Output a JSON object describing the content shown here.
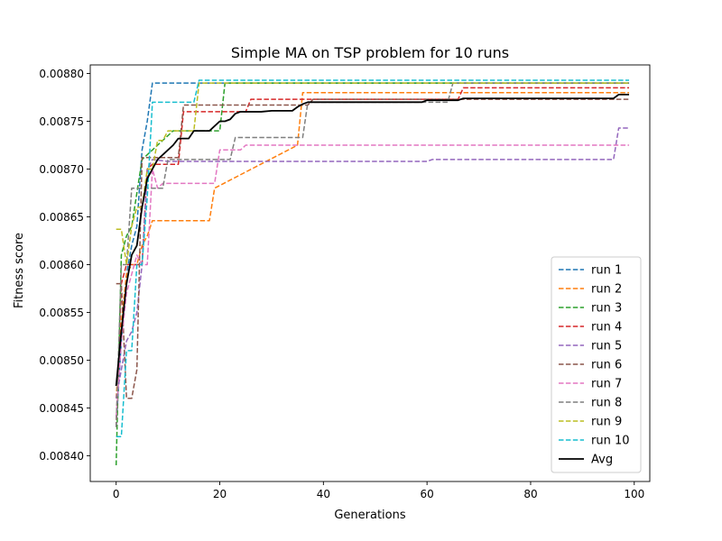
{
  "chart_data": {
    "type": "line",
    "title": "Simple MA on TSP problem for 10 runs",
    "xlabel": "Generations",
    "ylabel": "Fitness score",
    "xlim": [
      -5,
      103
    ],
    "ylim": [
      0.008373,
      0.008809
    ],
    "xticks": [
      0,
      20,
      40,
      60,
      80,
      100
    ],
    "xtick_labels": [
      "0",
      "20",
      "40",
      "60",
      "80",
      "100"
    ],
    "yticks": [
      0.0084,
      0.00845,
      0.0085,
      0.00855,
      0.0086,
      0.00865,
      0.0087,
      0.00875,
      0.0088
    ],
    "ytick_labels": [
      "0.00840",
      "0.00845",
      "0.00850",
      "0.00855",
      "0.00860",
      "0.00865",
      "0.00870",
      "0.00875",
      "0.00880"
    ],
    "grid": false,
    "legend_position": "lower-right",
    "series": [
      {
        "name": "run 1",
        "color": "#1f77b4",
        "dash": true,
        "x": [
          0,
          1,
          2,
          3,
          4,
          5,
          6,
          7,
          99
        ],
        "y": [
          0.00843,
          0.00852,
          0.00859,
          0.00862,
          0.00864,
          0.00872,
          0.00875,
          0.00879,
          0.00879
        ]
      },
      {
        "name": "run 2",
        "color": "#ff7f0e",
        "dash": true,
        "x": [
          0,
          1,
          2,
          3,
          4,
          5,
          6,
          7,
          18,
          19,
          35,
          36,
          66,
          99
        ],
        "y": [
          0.00846,
          0.00854,
          0.00859,
          0.0086,
          0.0086,
          0.00862,
          0.00863,
          0.008646,
          0.008646,
          0.00868,
          0.008725,
          0.00878,
          0.00878,
          0.00878
        ]
      },
      {
        "name": "run 3",
        "color": "#2ca02c",
        "dash": true,
        "x": [
          0,
          1,
          2,
          3,
          5,
          8,
          11,
          20,
          21,
          99
        ],
        "y": [
          0.00839,
          0.00861,
          0.00863,
          0.00864,
          0.00871,
          0.008725,
          0.00874,
          0.00874,
          0.00879,
          0.00879
        ]
      },
      {
        "name": "run 4",
        "color": "#d62728",
        "dash": true,
        "x": [
          0,
          1,
          2,
          5,
          6,
          7,
          12,
          13,
          25,
          26,
          66,
          67,
          99
        ],
        "y": [
          0.00843,
          0.00858,
          0.0086,
          0.0086,
          0.0087,
          0.008705,
          0.008705,
          0.00876,
          0.00876,
          0.008773,
          0.008773,
          0.008785,
          0.008785
        ]
      },
      {
        "name": "run 5",
        "color": "#9467bd",
        "dash": true,
        "x": [
          0,
          1,
          2,
          3,
          4,
          5,
          6,
          7,
          10,
          12,
          60,
          61,
          96,
          97,
          99
        ],
        "y": [
          0.00846,
          0.00849,
          0.00852,
          0.00853,
          0.00855,
          0.0086,
          0.0087,
          0.00871,
          0.008708,
          0.008708,
          0.008708,
          0.00871,
          0.00871,
          0.008743,
          0.008743
        ]
      },
      {
        "name": "run 6",
        "color": "#8c564b",
        "dash": true,
        "x": [
          0,
          1,
          2,
          3,
          4,
          5,
          6,
          12,
          13,
          37,
          38,
          99
        ],
        "y": [
          0.00858,
          0.00858,
          0.00846,
          0.00846,
          0.00849,
          0.008712,
          0.008712,
          0.008712,
          0.008767,
          0.008767,
          0.008773,
          0.008773
        ]
      },
      {
        "name": "run 7",
        "color": "#e377c2",
        "dash": true,
        "x": [
          0,
          1,
          2,
          3,
          4,
          5,
          6,
          7,
          8,
          9,
          19,
          20,
          24,
          25,
          99
        ],
        "y": [
          0.00844,
          0.00852,
          0.00857,
          0.00859,
          0.00861,
          0.0086,
          0.0086,
          0.0087,
          0.00868,
          0.008685,
          0.008685,
          0.00872,
          0.00872,
          0.008725,
          0.008725
        ]
      },
      {
        "name": "run 8",
        "color": "#7f7f7f",
        "dash": true,
        "x": [
          0,
          1,
          2,
          3,
          9,
          10,
          22,
          23,
          36,
          37,
          64,
          65,
          99
        ],
        "y": [
          0.00843,
          0.0086,
          0.0086,
          0.00868,
          0.00868,
          0.00871,
          0.00871,
          0.008733,
          0.008733,
          0.00877,
          0.00877,
          0.00879,
          0.00879
        ]
      },
      {
        "name": "run 9",
        "color": "#bcbd22",
        "dash": true,
        "x": [
          0,
          1,
          2,
          3,
          4,
          5,
          6,
          7,
          8,
          9,
          10,
          15,
          16,
          99
        ],
        "y": [
          0.008637,
          0.008637,
          0.0086,
          0.00864,
          0.00866,
          0.00866,
          0.0087,
          0.0087,
          0.00873,
          0.00873,
          0.00874,
          0.00874,
          0.00879,
          0.00879
        ]
      },
      {
        "name": "run 10",
        "color": "#17becf",
        "dash": true,
        "x": [
          0,
          1,
          2,
          3,
          4,
          5,
          6,
          7,
          15,
          16,
          99
        ],
        "y": [
          0.00842,
          0.00842,
          0.00851,
          0.00851,
          0.0086,
          0.0086,
          0.00867,
          0.00877,
          0.00877,
          0.008793,
          0.008793
        ]
      },
      {
        "name": "Avg",
        "color": "#000000",
        "dash": false,
        "x": [
          0,
          1,
          2,
          3,
          4,
          5,
          6,
          7,
          8,
          9,
          10,
          11,
          12,
          13,
          14,
          15,
          16,
          17,
          18,
          19,
          20,
          21,
          22,
          23,
          24,
          25,
          26,
          28,
          30,
          32,
          34,
          35,
          36,
          37,
          38,
          40,
          50,
          59,
          60,
          66,
          67,
          96,
          97,
          99
        ],
        "y": [
          0.008473,
          0.00853,
          0.00858,
          0.00861,
          0.00862,
          0.00866,
          0.00869,
          0.0087,
          0.00871,
          0.008715,
          0.00872,
          0.008725,
          0.008732,
          0.008732,
          0.008732,
          0.00874,
          0.00874,
          0.00874,
          0.00874,
          0.008745,
          0.00875,
          0.00875,
          0.008752,
          0.008758,
          0.00876,
          0.00876,
          0.00876,
          0.00876,
          0.008761,
          0.008761,
          0.008761,
          0.008765,
          0.008768,
          0.00877,
          0.00877,
          0.00877,
          0.00877,
          0.00877,
          0.008772,
          0.008772,
          0.008774,
          0.008774,
          0.008778,
          0.008778
        ]
      }
    ]
  }
}
